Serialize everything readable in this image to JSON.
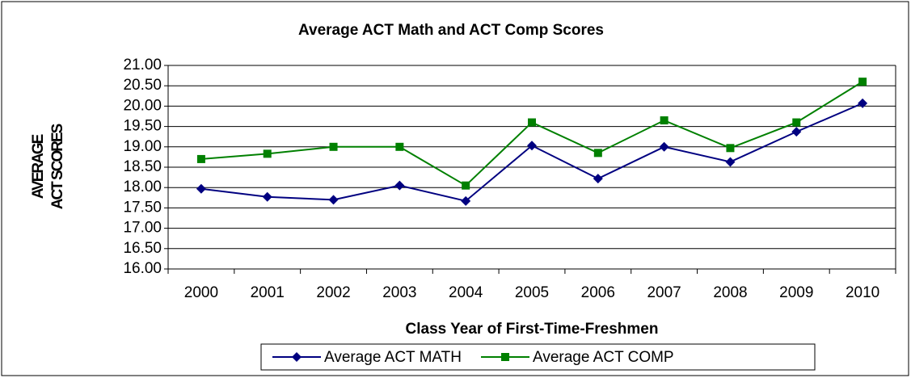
{
  "chart_data": {
    "type": "line",
    "title": "Average ACT Math and ACT Comp Scores",
    "xlabel": "Class Year of First-Time-Freshmen",
    "ylabel": [
      "AVERAGE",
      "ACT SCORES"
    ],
    "categories": [
      "2000",
      "2001",
      "2002",
      "2003",
      "2004",
      "2005",
      "2006",
      "2007",
      "2008",
      "2009",
      "2010"
    ],
    "series": [
      {
        "name": "Average ACT MATH",
        "color": "#000080",
        "marker": "diamond",
        "values": [
          17.97,
          17.77,
          17.7,
          18.05,
          17.67,
          19.03,
          18.22,
          19.0,
          18.63,
          19.37,
          20.07
        ]
      },
      {
        "name": "Average ACT COMP",
        "color": "#008000",
        "marker": "square",
        "values": [
          18.7,
          18.83,
          19.0,
          19.0,
          18.05,
          19.6,
          18.85,
          19.65,
          18.97,
          19.6,
          20.6
        ]
      }
    ],
    "ylim": [
      16,
      21
    ],
    "yticks": [
      {
        "value": 16,
        "label": "16.00"
      },
      {
        "value": 16.5,
        "label": "16.50"
      },
      {
        "value": 17,
        "label": "17.00"
      },
      {
        "value": 17.5,
        "label": "17.50"
      },
      {
        "value": 18,
        "label": "18.00"
      },
      {
        "value": 18.5,
        "label": "18.50"
      },
      {
        "value": 19,
        "label": "19.00"
      },
      {
        "value": 19.5,
        "label": "19.50"
      },
      {
        "value": 20,
        "label": "20.00"
      },
      {
        "value": 20.5,
        "label": "20.50"
      },
      {
        "value": 21,
        "label": "21.00"
      }
    ],
    "grid": true,
    "legend": "bottom"
  }
}
